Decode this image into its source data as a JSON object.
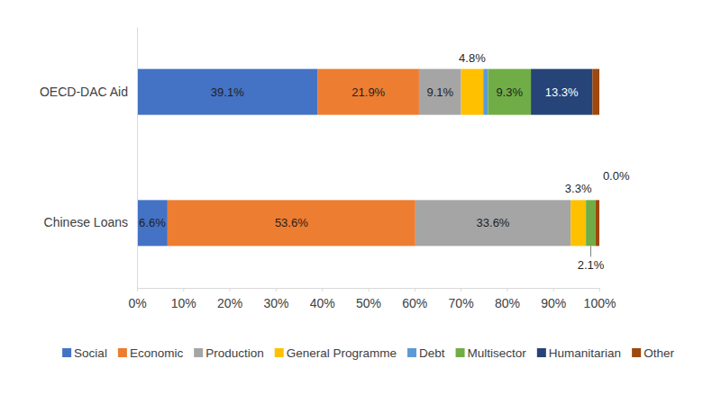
{
  "chart_data": {
    "type": "bar",
    "orientation": "horizontal",
    "stacked": true,
    "data_labels": true,
    "legend": "bottom",
    "categories": [
      "OECD-DAC Aid",
      "Chinese Loans"
    ],
    "xlim": [
      0,
      100
    ],
    "xticks": [
      {
        "value": 0,
        "label": "0%"
      },
      {
        "value": 10,
        "label": "10%"
      },
      {
        "value": 20,
        "label": "20%"
      },
      {
        "value": 30,
        "label": "30%"
      },
      {
        "value": 40,
        "label": "40%"
      },
      {
        "value": 50,
        "label": "50%"
      },
      {
        "value": 60,
        "label": "60%"
      },
      {
        "value": 70,
        "label": "70%"
      },
      {
        "value": 80,
        "label": "80%"
      },
      {
        "value": 90,
        "label": "90%"
      },
      {
        "value": 100,
        "label": "100%"
      }
    ],
    "series": [
      {
        "name": "Social",
        "color": "#4472c4",
        "values": [
          39.1,
          6.6
        ],
        "value_labels": [
          "39.1%",
          "6.6%"
        ]
      },
      {
        "name": "Economic",
        "color": "#ed7d31",
        "values": [
          21.9,
          53.6
        ],
        "value_labels": [
          "21.9%",
          "53.6%"
        ]
      },
      {
        "name": "Production",
        "color": "#a5a5a5",
        "values": [
          9.1,
          33.6
        ],
        "value_labels": [
          "9.1%",
          "33.6%"
        ]
      },
      {
        "name": "General Programme",
        "color": "#ffc000",
        "values": [
          4.8,
          3.3
        ],
        "value_labels": [
          "4.8%",
          "3.3%"
        ]
      },
      {
        "name": "Debt",
        "color": "#5b9bd5",
        "values": [
          1.0,
          0.0
        ],
        "value_labels": [
          null,
          null
        ]
      },
      {
        "name": "Multisector",
        "color": "#70ad47",
        "values": [
          9.3,
          2.1
        ],
        "value_labels": [
          "9.3%",
          "2.1%"
        ]
      },
      {
        "name": "Humanitarian",
        "color": "#264478",
        "values": [
          13.3,
          0.0
        ],
        "value_labels": [
          "13.3%",
          "0.0%"
        ]
      },
      {
        "name": "Other",
        "color": "#9e480e",
        "values": [
          1.5,
          0.8
        ],
        "value_labels": [
          null,
          null
        ]
      }
    ]
  }
}
